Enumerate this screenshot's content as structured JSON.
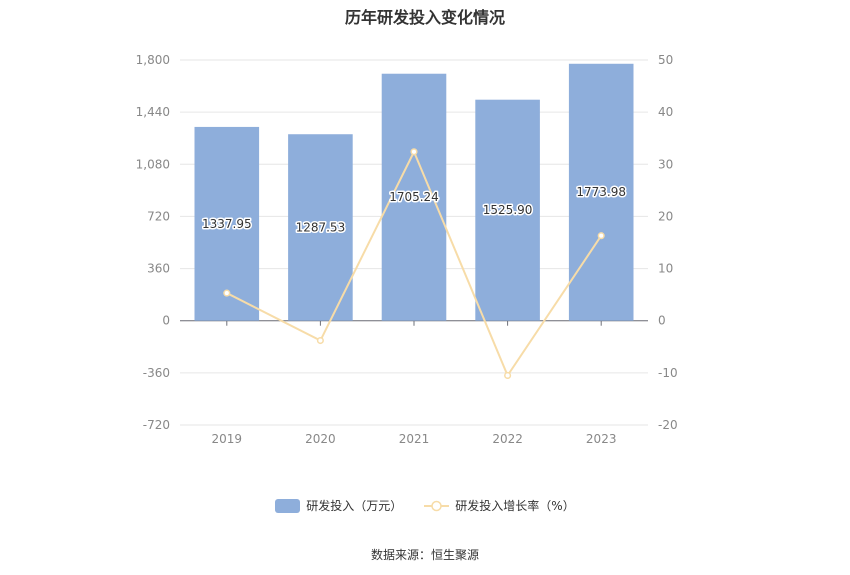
{
  "chart_data": {
    "type": "bar",
    "title": "历年研发投入变化情况",
    "categories": [
      "2019",
      "2020",
      "2021",
      "2022",
      "2023"
    ],
    "series": [
      {
        "name": "研发投入（万元）",
        "type": "bar",
        "axis": "left",
        "color": "#8eaedb",
        "values": [
          1337.95,
          1287.53,
          1705.24,
          1525.9,
          1773.98
        ],
        "labels": [
          "1337.95",
          "1287.53",
          "1705.24",
          "1525.90",
          "1773.98"
        ]
      },
      {
        "name": "研发投入增长率（%）",
        "type": "line",
        "axis": "right",
        "color": "#f7dca8",
        "values": [
          5.3,
          -3.8,
          32.4,
          -10.5,
          16.3
        ]
      }
    ],
    "y_left": {
      "min": -720,
      "max": 1800,
      "ticks": [
        "-720",
        "-360",
        "0",
        "360",
        "720",
        "1,080",
        "1,440",
        "1,800"
      ]
    },
    "y_right": {
      "min": -20,
      "max": 50,
      "ticks": [
        "-20",
        "-10",
        "0",
        "10",
        "20",
        "30",
        "40",
        "50"
      ]
    },
    "grid": true,
    "legend_position": "bottom"
  },
  "source": "数据来源：恒生聚源"
}
